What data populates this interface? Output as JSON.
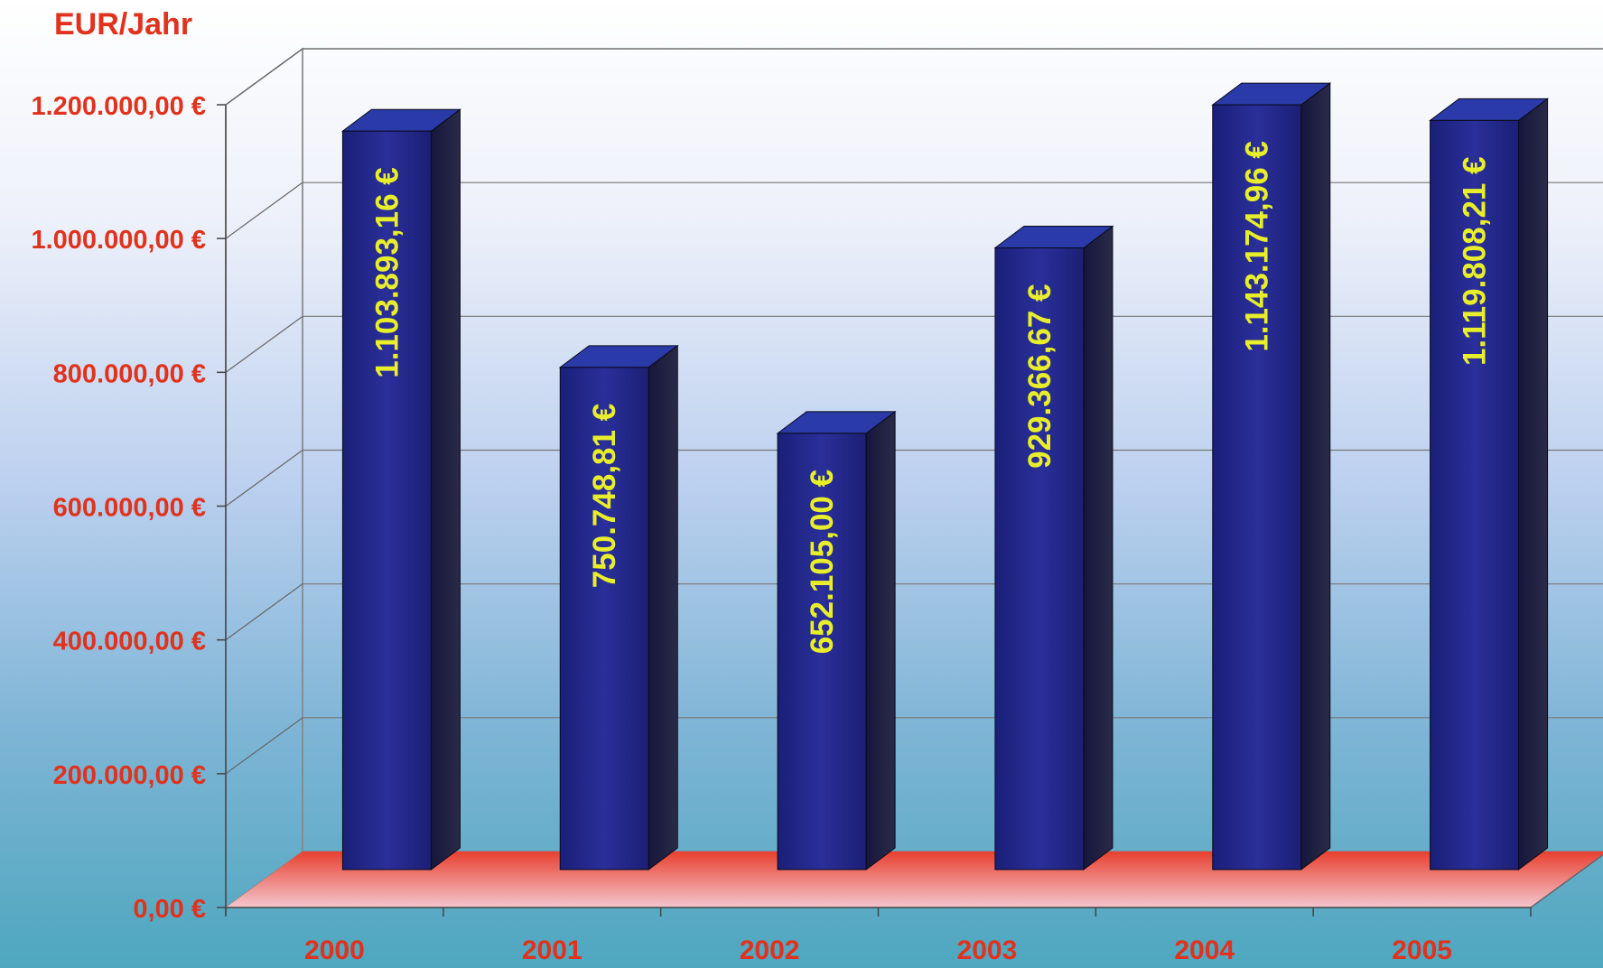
{
  "chart_data": {
    "type": "bar",
    "title": "",
    "ylabel": "EUR/Jahr",
    "xlabel": "",
    "categories": [
      "2000",
      "2001",
      "2002",
      "2003",
      "2004",
      "2005"
    ],
    "values": [
      1103893.16,
      750748.81,
      652105.0,
      929366.67,
      1143174.96,
      1119808.21
    ],
    "value_labels": [
      "1.103.893,16 €",
      "750.748,81 €",
      "652.105,00 €",
      "929.366,67 €",
      "1.143.174,96 €",
      "1.119.808,21 €"
    ],
    "yticks": [
      0,
      200000,
      400000,
      600000,
      800000,
      1000000,
      1200000
    ],
    "ytick_labels": [
      "0,00 €",
      "200.000,00 €",
      "400.000,00 €",
      "600.000,00 €",
      "800.000,00 €",
      "1.000.000,00 €",
      "1.200.000,00 €"
    ],
    "ylim": [
      0,
      1200000
    ],
    "grid": true,
    "style": "3d",
    "colors": {
      "bar_front": "#1f2480",
      "bar_side": "#15153a",
      "bar_top": "#2a3aa8",
      "value_label": "#e8ef2a",
      "axis_label": "#e0321c",
      "floor": "#e8483a"
    }
  }
}
